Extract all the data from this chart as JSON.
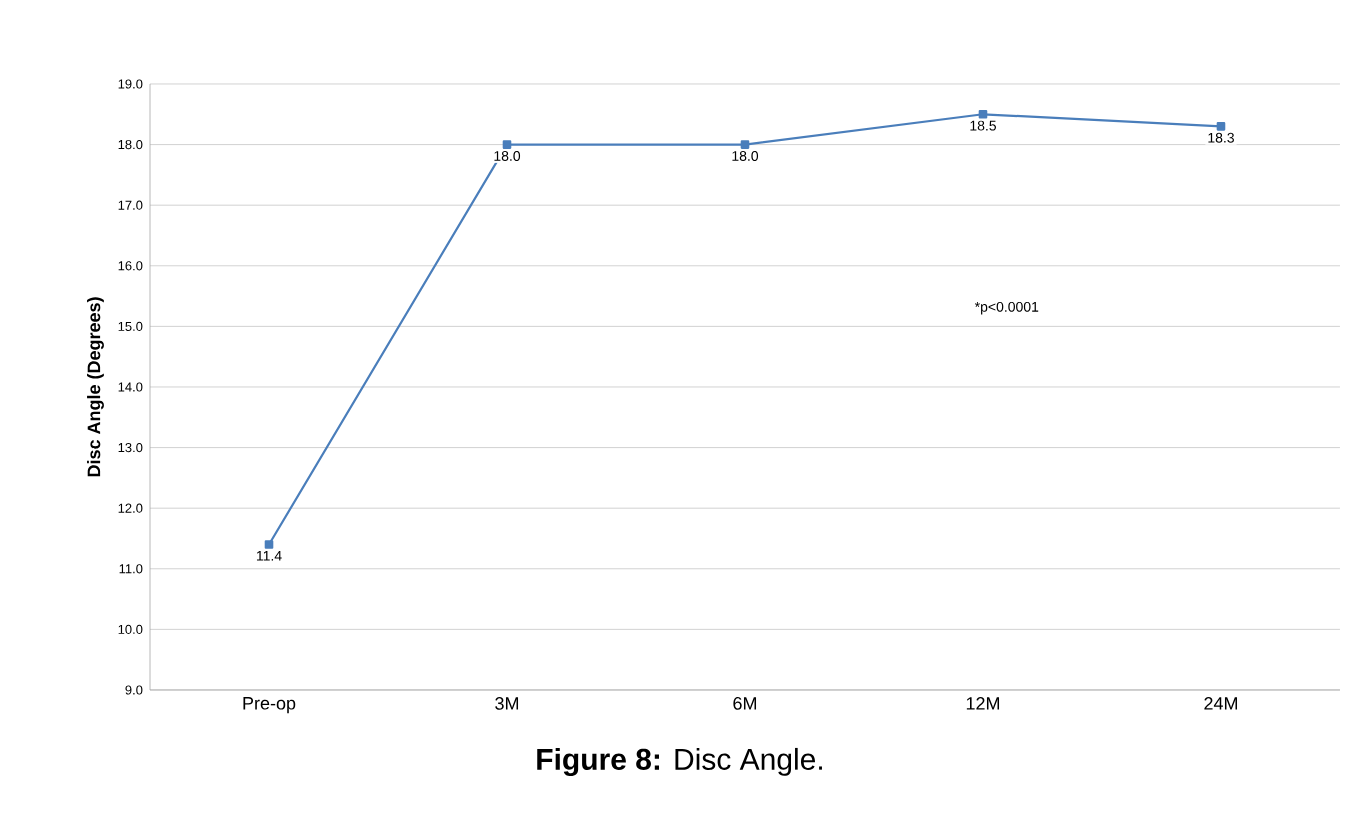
{
  "chart_data": {
    "type": "line",
    "title": "**Figure 8:** Disc Angle.",
    "ylabel": "Disc Angle (Degrees)",
    "categories": [
      "Pre-op",
      "3M",
      "6M",
      "12M",
      "24M"
    ],
    "series": [
      {
        "color": "#4a7ebb",
        "values": [
          11.4,
          18.0,
          18.0,
          18.5,
          18.3
        ],
        "value_labels": [
          "11.4",
          "18.0",
          "18.0",
          "18.5",
          "18.3"
        ]
      }
    ],
    "ylim": [
      9,
      19
    ],
    "yticks": [
      {
        "value": 9,
        "label": "9.0"
      },
      {
        "value": 10,
        "label": "10.0"
      },
      {
        "value": 11,
        "label": "11.0"
      },
      {
        "value": 12,
        "label": "12.0"
      },
      {
        "value": 13,
        "label": "13.0"
      },
      {
        "value": 14,
        "label": "14.0"
      },
      {
        "value": 15,
        "label": "15.0"
      },
      {
        "value": 16,
        "label": "16.0"
      },
      {
        "value": 17,
        "label": "17.0"
      },
      {
        "value": 18,
        "label": "18.0"
      },
      {
        "value": 19,
        "label": "19.0"
      }
    ],
    "grid": "y",
    "marker": "square",
    "line_style": "solid",
    "annotations": [
      "*p<0.0001"
    ]
  }
}
